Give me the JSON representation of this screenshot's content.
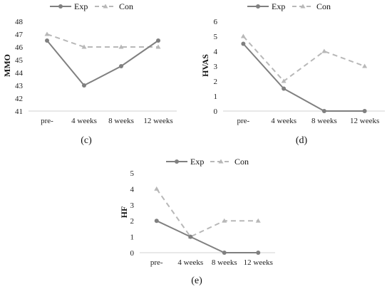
{
  "colors": {
    "exp": "#808080",
    "con": "#b8b8b8",
    "axis": "#d0d0d0"
  },
  "legend": {
    "exp": "Exp",
    "con": "Con"
  },
  "chart_data": [
    {
      "type": "line",
      "caption": "(c)",
      "ylabel": "MMO",
      "categories": [
        "pre-",
        "4 weeks",
        "8 weeks",
        "12 weeks"
      ],
      "ylim": [
        41,
        48
      ],
      "yticks": [
        "41",
        "42",
        "43",
        "44",
        "45",
        "46",
        "47",
        "48"
      ],
      "series": [
        {
          "name": "Exp",
          "values": [
            46.5,
            43.0,
            44.5,
            46.5
          ]
        },
        {
          "name": "Con",
          "values": [
            47.0,
            46.0,
            46.0,
            46.0
          ]
        }
      ]
    },
    {
      "type": "line",
      "caption": "(d)",
      "ylabel": "HVAS",
      "categories": [
        "pre-",
        "4 weeks",
        "8 weeks",
        "12 weeks"
      ],
      "ylim": [
        0,
        6
      ],
      "yticks": [
        "0",
        "1",
        "2",
        "3",
        "4",
        "5",
        "6"
      ],
      "series": [
        {
          "name": "Exp",
          "values": [
            4.5,
            1.5,
            0.0,
            0.0
          ]
        },
        {
          "name": "Con",
          "values": [
            5.0,
            2.0,
            4.0,
            3.0
          ]
        }
      ]
    },
    {
      "type": "line",
      "caption": "(e)",
      "ylabel": "HF",
      "categories": [
        "pre-",
        "4 weeks",
        "8 weeks",
        "12 weeks"
      ],
      "ylim": [
        0,
        5
      ],
      "yticks": [
        "0",
        "1",
        "2",
        "3",
        "4",
        "5"
      ],
      "series": [
        {
          "name": "Exp",
          "values": [
            2.0,
            1.0,
            0.0,
            0.0
          ]
        },
        {
          "name": "Con",
          "values": [
            4.0,
            1.0,
            2.0,
            2.0
          ]
        }
      ]
    }
  ]
}
